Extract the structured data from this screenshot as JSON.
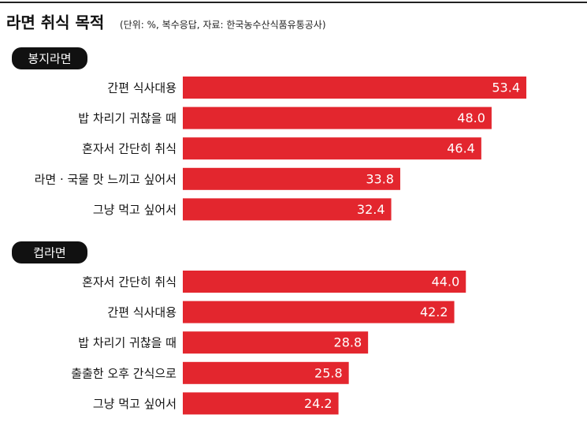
{
  "title": "라면 취식 목적",
  "subtitle": "(단위: %, 복수응답, 자료: 한국농수산식품유통공사)",
  "chart_data": [
    {
      "type": "bar",
      "title": "봉지라면",
      "color": "#e3262e",
      "categories": [
        "간편 식사대용",
        "밥 차리기 귀찮을 때",
        "혼자서 간단히 취식",
        "라면 · 국물 맛 느끼고 싶어서",
        "그냥 먹고 싶어서"
      ],
      "values": [
        53.4,
        48,
        46.4,
        33.8,
        32.4
      ],
      "value_labels": [
        "53.4",
        "48.0",
        "46.4",
        "33.8",
        "32.4"
      ]
    },
    {
      "type": "bar",
      "title": "컵라면",
      "color": "#e3262e",
      "categories": [
        "혼자서 간단히 취식",
        "간편 식사대용",
        "밥 차리기 귀찮을 때",
        "출출한 오후 간식으로",
        "그냥 먹고 싶어서"
      ],
      "values": [
        44,
        42.2,
        28.8,
        25.8,
        24.2
      ],
      "value_labels": [
        "44.0",
        "42.2",
        "28.8",
        "25.8",
        "24.2"
      ]
    }
  ]
}
